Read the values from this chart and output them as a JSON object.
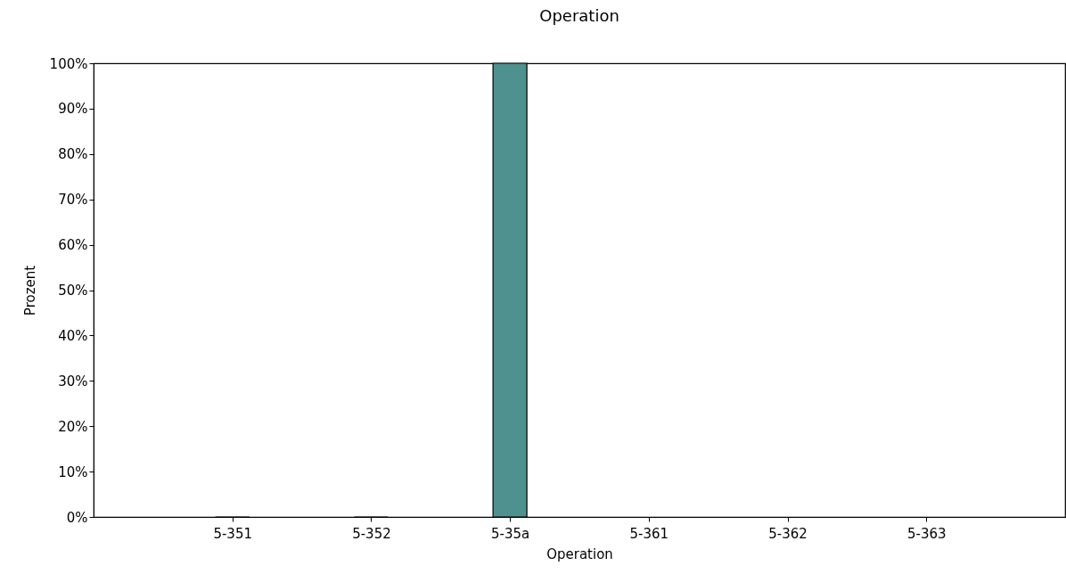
{
  "chart_data": {
    "type": "bar",
    "title": "Operation",
    "xlabel": "Operation",
    "ylabel": "Prozent",
    "categories": [
      "5-351",
      "5-352",
      "5-35a",
      "5-361",
      "5-362",
      "5-363"
    ],
    "values": [
      0,
      0,
      100,
      null,
      null,
      null
    ],
    "color": "#4e918f",
    "ylim": [
      0,
      100
    ],
    "yticks": [
      {
        "value": 0,
        "label": "0%"
      },
      {
        "value": 10,
        "label": "10%"
      },
      {
        "value": 20,
        "label": "20%"
      },
      {
        "value": 30,
        "label": "30%"
      },
      {
        "value": 40,
        "label": "40%"
      },
      {
        "value": 50,
        "label": "50%"
      },
      {
        "value": 60,
        "label": "60%"
      },
      {
        "value": 70,
        "label": "70%"
      },
      {
        "value": 80,
        "label": "80%"
      },
      {
        "value": 90,
        "label": "90%"
      },
      {
        "value": 100,
        "label": "100%"
      }
    ],
    "grid": false
  }
}
